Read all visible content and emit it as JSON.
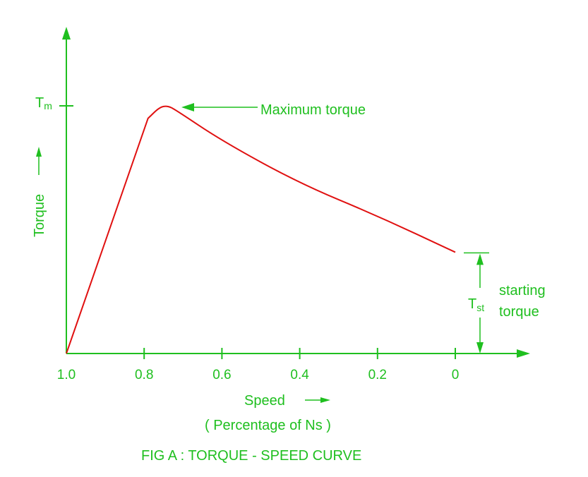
{
  "chart_data": {
    "type": "line",
    "title": "FIG A : TORQUE - SPEED CURVE",
    "xlabel": "Speed",
    "xlabel_note": "( Percentage of Ns )",
    "ylabel": "Torque",
    "x_reversed": true,
    "xlim": [
      1.0,
      0.0
    ],
    "x_ticks": [
      "1.0",
      "0.8",
      "0.6",
      "0.4",
      "0.2",
      "0"
    ],
    "x_tick_values": [
      1.0,
      0.8,
      0.6,
      0.4,
      0.2,
      0.0
    ],
    "y_tick": {
      "label": "T",
      "sub": "m"
    },
    "series": [
      {
        "color": "#e01010",
        "points": [
          [
            1.0,
            0.0
          ],
          [
            0.79,
            0.94
          ],
          [
            0.76,
            0.985
          ],
          [
            0.74,
            0.99
          ],
          [
            0.72,
            0.975
          ],
          [
            0.6,
            0.85
          ],
          [
            0.4,
            0.68
          ],
          [
            0.2,
            0.55
          ],
          [
            0.0,
            0.405
          ]
        ]
      }
    ],
    "annotations": {
      "max_label": "Maximum torque",
      "tst_label": {
        "main": "T",
        "sub": "st"
      },
      "starting_line1": "starting",
      "starting_line2": "torque"
    },
    "colors": {
      "axes": "#1fbf1f",
      "curve": "#e01010",
      "text": "#1fbf1f"
    }
  }
}
